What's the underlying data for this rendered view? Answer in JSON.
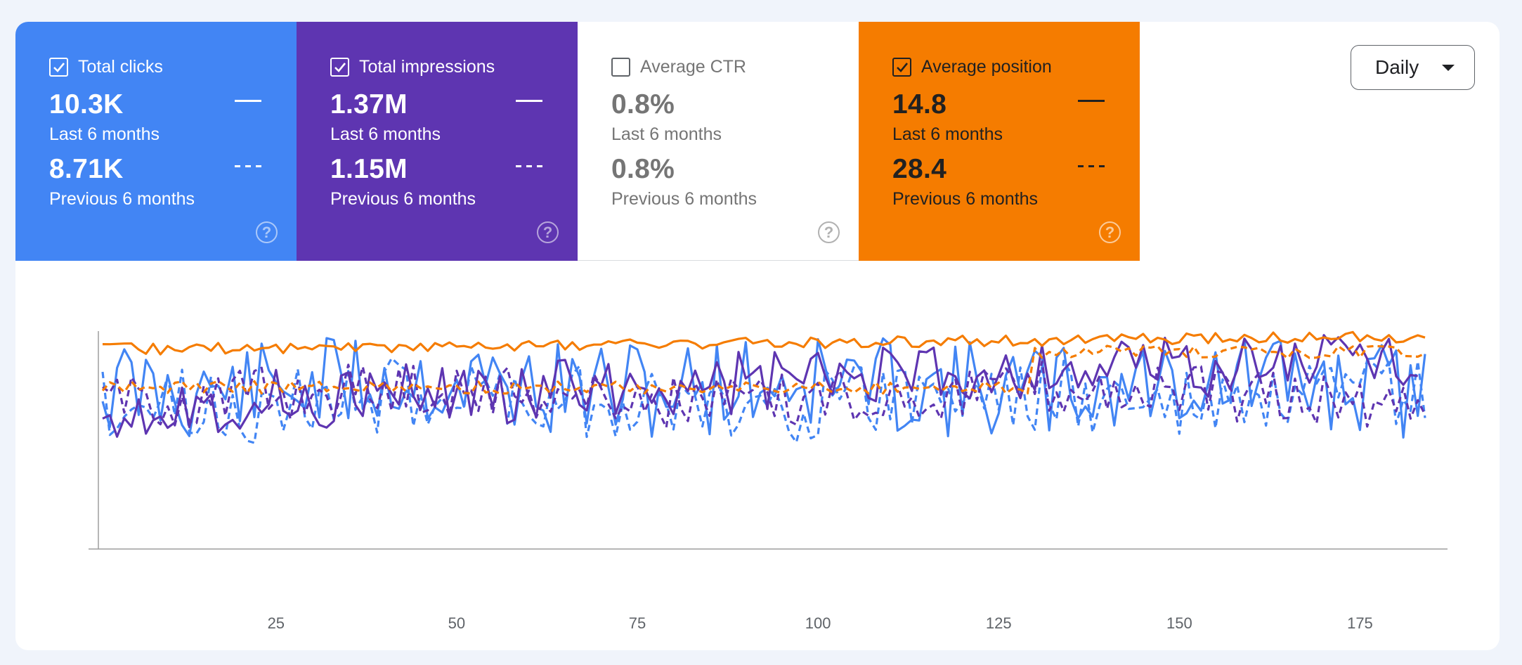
{
  "cards": [
    {
      "id": "clicks",
      "title": "Total clicks",
      "checked": true,
      "current": "10.3K",
      "current_period": "Last 6 months",
      "previous": "8.71K",
      "previous_period": "Previous 6 months"
    },
    {
      "id": "impressions",
      "title": "Total impressions",
      "checked": true,
      "current": "1.37M",
      "current_period": "Last 6 months",
      "previous": "1.15M",
      "previous_period": "Previous 6 months"
    },
    {
      "id": "ctr",
      "title": "Average CTR",
      "checked": false,
      "current": "0.8%",
      "current_period": "Last 6 months",
      "previous": "0.8%",
      "previous_period": "Previous 6 months"
    },
    {
      "id": "position",
      "title": "Average position",
      "checked": true,
      "current": "14.8",
      "current_period": "Last 6 months",
      "previous": "28.4",
      "previous_period": "Previous 6 months"
    }
  ],
  "help_glyph": "?",
  "granularity": {
    "selected": "Daily"
  },
  "colors": {
    "clicks": "#4285f4",
    "impressions": "#5e35b1",
    "position": "#f57c00",
    "ctr_card_bg": "#ffffff"
  },
  "chart_data": {
    "type": "line",
    "x_range": [
      1,
      184
    ],
    "x_ticks": [
      25,
      50,
      75,
      100,
      125,
      150,
      175
    ],
    "y_ticks_shown": false,
    "series": [
      {
        "name": "Total clicks",
        "period": "current",
        "style": "solid",
        "color": "#4285f4"
      },
      {
        "name": "Total clicks",
        "period": "previous",
        "style": "dashed",
        "color": "#4285f4"
      },
      {
        "name": "Total impressions",
        "period": "current",
        "style": "solid",
        "color": "#5e35b1"
      },
      {
        "name": "Total impressions",
        "period": "previous",
        "style": "dashed",
        "color": "#5e35b1"
      },
      {
        "name": "Average position",
        "period": "current",
        "style": "solid",
        "color": "#f57c00"
      },
      {
        "name": "Average position",
        "period": "previous",
        "style": "dashed",
        "color": "#f57c00"
      }
    ]
  }
}
